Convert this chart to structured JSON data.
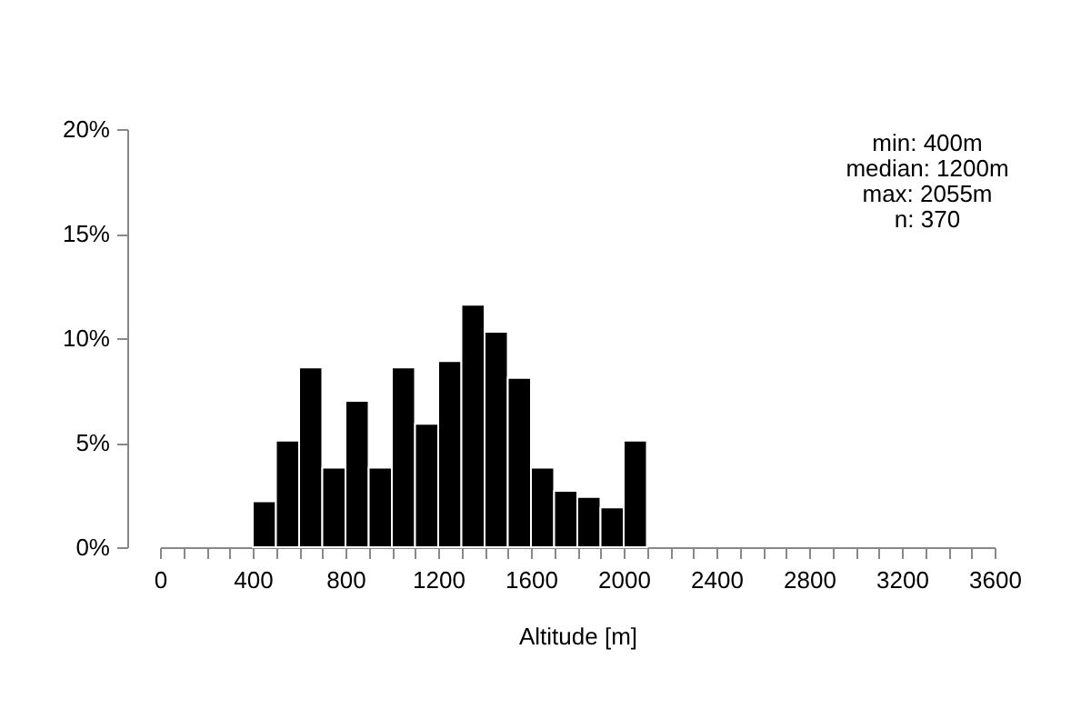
{
  "chart_data": {
    "type": "histogram",
    "xlabel": "Altitude [m]",
    "bins": [
      400,
      500,
      600,
      700,
      800,
      900,
      1000,
      1100,
      1200,
      1300,
      1400,
      1500,
      1600,
      1700,
      1800,
      1900,
      2000,
      2100
    ],
    "values": [
      2.2,
      5.1,
      8.6,
      3.8,
      7.0,
      3.8,
      8.6,
      5.9,
      8.9,
      11.6,
      10.3,
      8.1,
      3.8,
      2.7,
      2.4,
      1.9,
      5.1
    ],
    "color": "#000000",
    "xlim": [
      0,
      3600
    ],
    "xticks": [
      0,
      {
        "value": 100,
        "label": null
      },
      {
        "value": 200,
        "label": null
      },
      {
        "value": 300,
        "label": null
      },
      400,
      {
        "value": 500,
        "label": null
      },
      {
        "value": 600,
        "label": null
      },
      {
        "value": 700,
        "label": null
      },
      800,
      {
        "value": 900,
        "label": null
      },
      {
        "value": 1000,
        "label": null
      },
      {
        "value": 1100,
        "label": null
      },
      1200,
      {
        "value": 1300,
        "label": null
      },
      {
        "value": 1400,
        "label": null
      },
      {
        "value": 1500,
        "label": null
      },
      1600,
      {
        "value": 1700,
        "label": null
      },
      {
        "value": 1800,
        "label": null
      },
      {
        "value": 1900,
        "label": null
      },
      2000,
      {
        "value": 2100,
        "label": null
      },
      {
        "value": 2200,
        "label": null
      },
      {
        "value": 2300,
        "label": null
      },
      2400,
      {
        "value": 2500,
        "label": null
      },
      {
        "value": 2600,
        "label": null
      },
      {
        "value": 2700,
        "label": null
      },
      2800,
      {
        "value": 2900,
        "label": null
      },
      {
        "value": 3000,
        "label": null
      },
      {
        "value": 3100,
        "label": null
      },
      3200,
      {
        "value": 3300,
        "label": null
      },
      {
        "value": 3400,
        "label": null
      },
      {
        "value": 3500,
        "label": null
      },
      3600
    ],
    "ylim": [
      0,
      20
    ],
    "yticks": [
      {
        "value": 0,
        "label": "0%"
      },
      {
        "value": 5,
        "label": "5%"
      },
      {
        "value": 10,
        "label": "10%"
      },
      {
        "value": 15,
        "label": "15%"
      },
      {
        "value": 20,
        "label": "20%"
      }
    ],
    "grid": false,
    "annotations": [
      "min: 400m",
      "median: 1200m",
      "max: 2055m",
      "n:  370"
    ]
  }
}
